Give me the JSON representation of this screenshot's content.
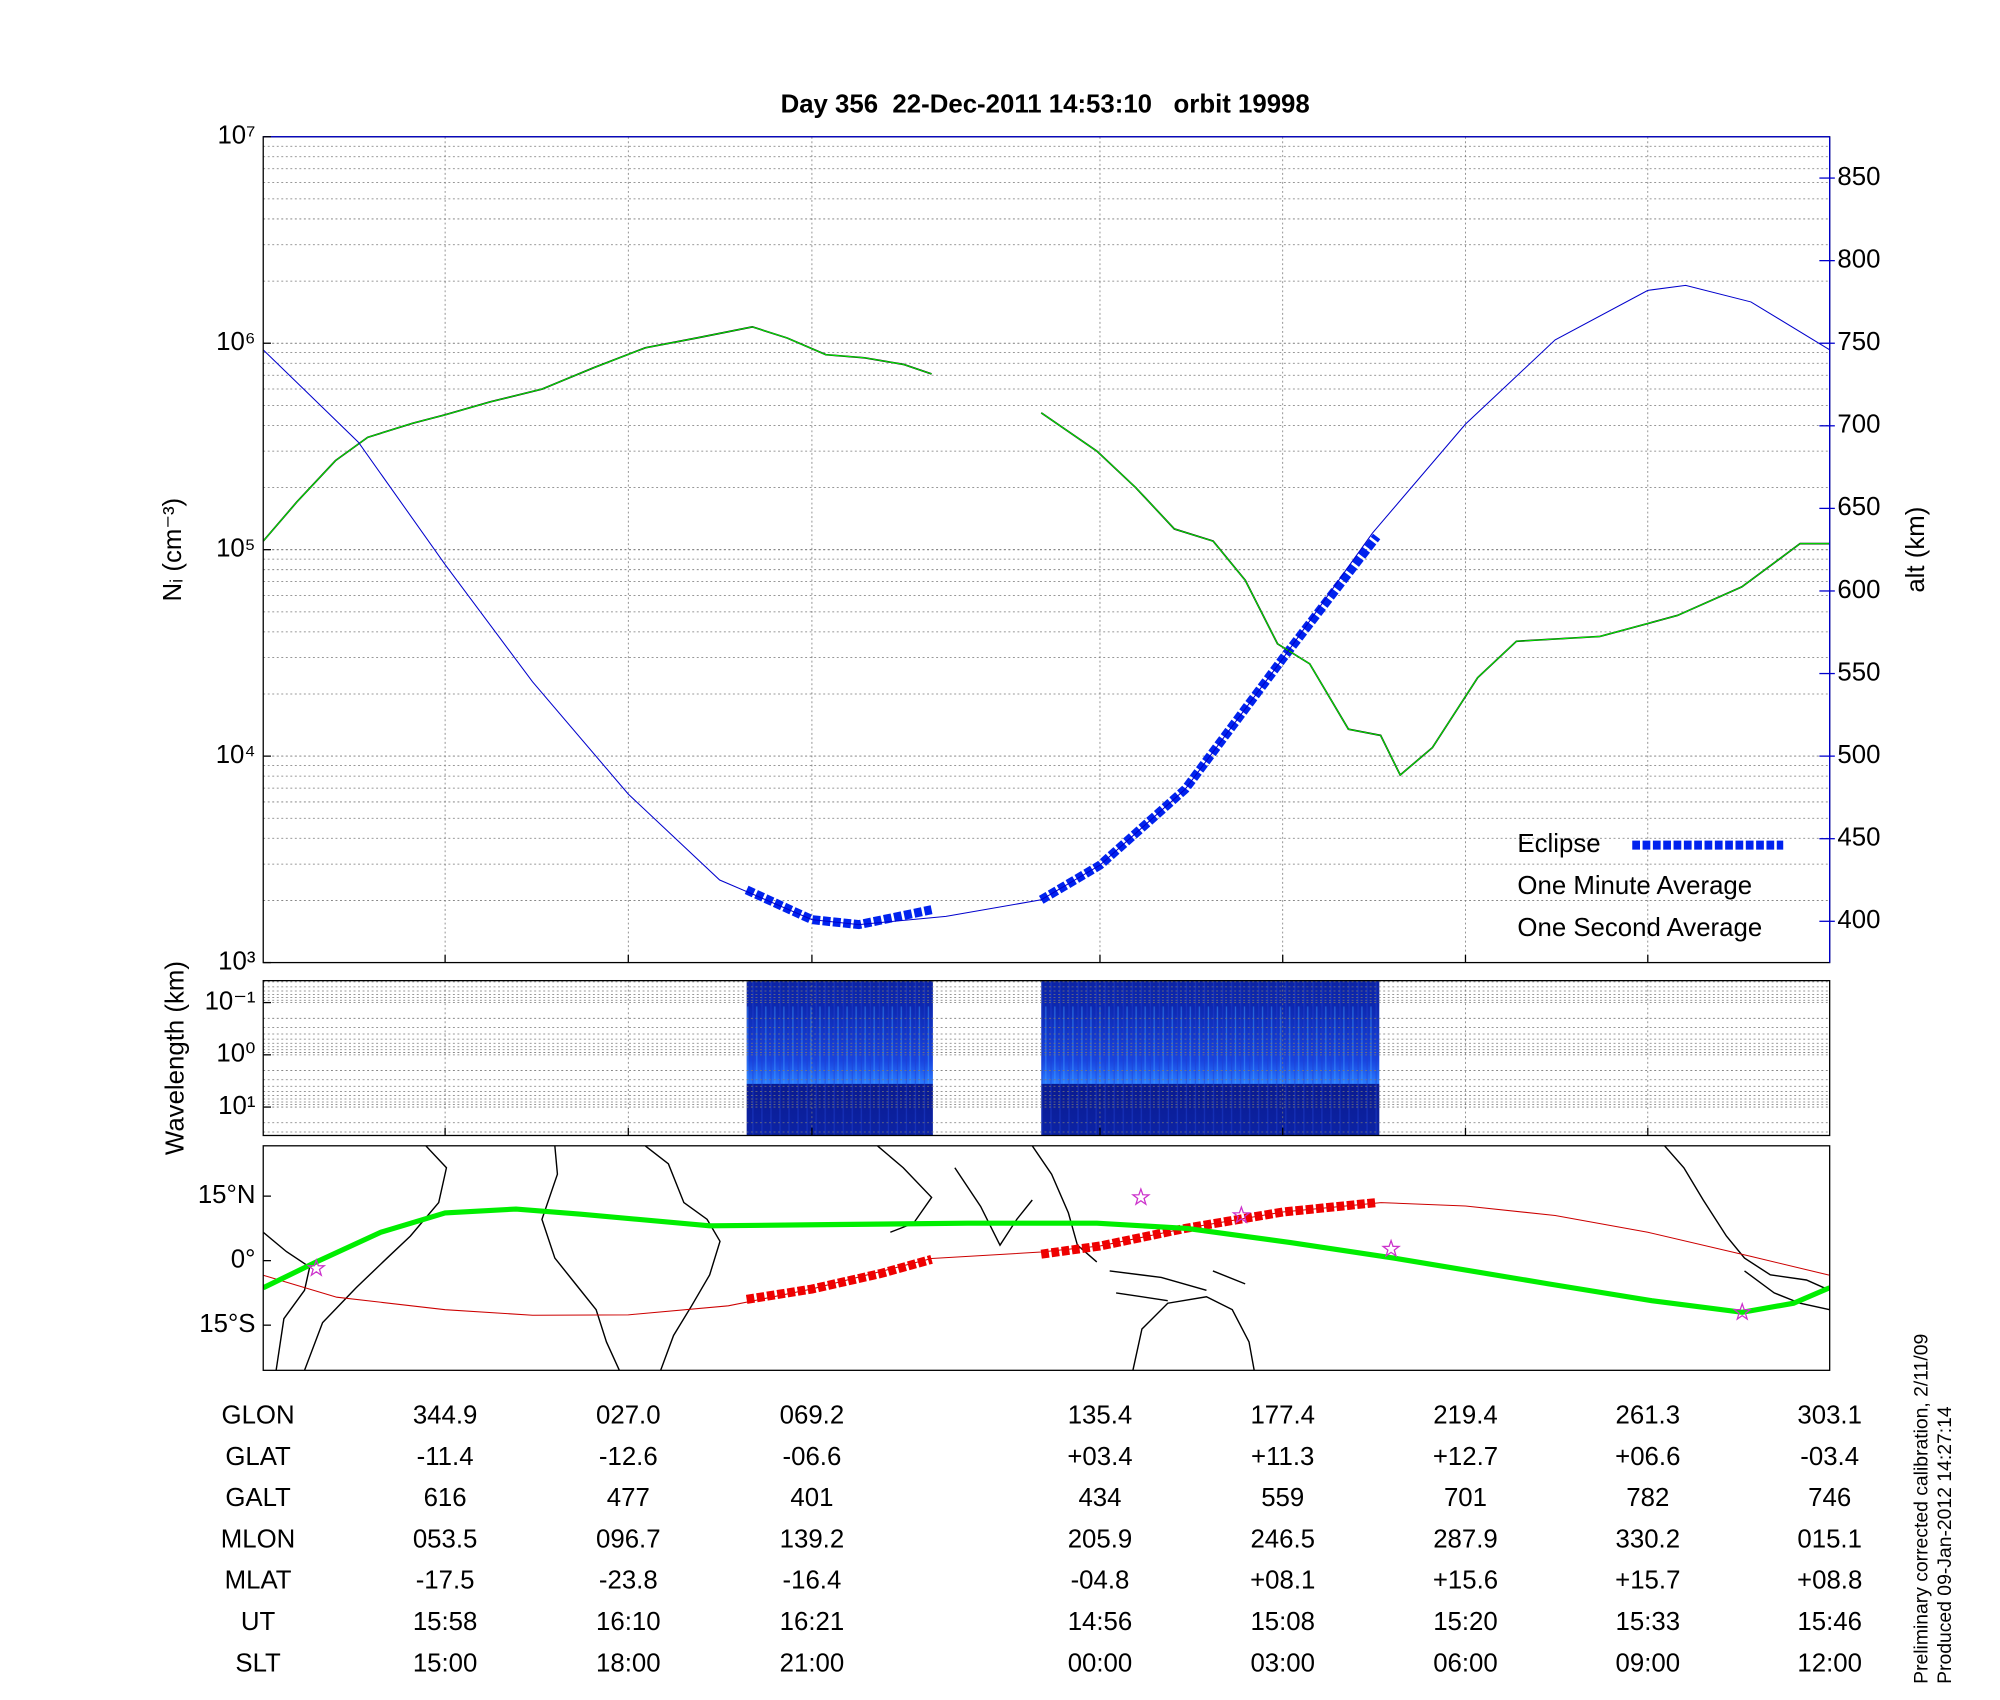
{
  "chart_data": [
    {
      "type": "line",
      "title": "Day 356  22-Dec-2011 14:53:10   orbit 19998",
      "ylabel": "Nᵢ (cm⁻³)",
      "y2label": "alt (km)",
      "log_y": true,
      "ylim": [
        1000,
        10000000
      ],
      "yticks": [
        {
          "value": 1000,
          "label": "10³"
        },
        {
          "value": 10000,
          "label": "10⁴"
        },
        {
          "value": 100000,
          "label": "10⁵"
        },
        {
          "value": 1000000,
          "label": "10⁶"
        },
        {
          "value": 10000000,
          "label": "10⁷"
        }
      ],
      "y2lim": [
        375,
        875
      ],
      "y2ticks": [
        400,
        450,
        500,
        550,
        600,
        650,
        700,
        750,
        800,
        850
      ],
      "y2color": "#0000cc",
      "xlim": [
        303.1,
        663.1
      ],
      "xticks": [
        344.9,
        387.0,
        429.2,
        495.4,
        537.4,
        579.4,
        621.3
      ],
      "grid": true,
      "legend": "lower right",
      "series": [
        {
          "name": "Eclipse",
          "color": "#0022ee",
          "axis": "y2",
          "style": "dashed",
          "x": [
            414.2,
            429.2,
            440,
            456.7,
            469.3,
            481.9,
            495.4,
            515,
            537.4,
            559.0
          ],
          "values": [
            419,
            401,
            398,
            407,
            null,
            413,
            434,
            480,
            559,
            633
          ]
        },
        {
          "name": "One Minute Average",
          "color": "#000000",
          "style": "line",
          "x": [
            303.1,
            310.8,
            319.7,
            327.1,
            337.5,
            344.9,
            355.3,
            367.2,
            379.0,
            390.9,
            402.7,
            415.5,
            423.5,
            432.4,
            441.3,
            450.2,
            456.7,
            469.3,
            481.9,
            494.7,
            503.6,
            512.5,
            521.4,
            528.8,
            536.2,
            543.6,
            552.5,
            559.9,
            564.4,
            571.8,
            582.2,
            591.1,
            610.3,
            628.1,
            642.9,
            656.3,
            663.1
          ],
          "values": [
            110000,
            170000,
            270000,
            350000,
            410000,
            450000,
            520000,
            600000,
            760000,
            950000,
            1060000,
            1200000,
            1060000,
            880000,
            850000,
            790000,
            710000,
            null,
            460000,
            300000,
            200000,
            126000,
            110000,
            71000,
            35000,
            28000,
            13500,
            12600,
            8100,
            11000,
            24000,
            36000,
            38000,
            48000,
            66000,
            107000,
            107000
          ]
        },
        {
          "name": "One Second Average",
          "color": "#00ee00",
          "style": "thin",
          "x": [
            303.1,
            310.8,
            319.7,
            327.1,
            337.5,
            344.9,
            355.3,
            367.2,
            379.0,
            390.9,
            402.7,
            415.5,
            423.5,
            432.4,
            441.3,
            450.2,
            456.7,
            469.3,
            481.9,
            494.7,
            503.6,
            512.5,
            521.4,
            528.8,
            536.2,
            543.6,
            552.5,
            559.9,
            564.4,
            571.8,
            582.2,
            591.1,
            610.3,
            628.1,
            642.9,
            656.3,
            663.1
          ],
          "values": [
            110000,
            170000,
            270000,
            350000,
            410000,
            450000,
            520000,
            600000,
            760000,
            950000,
            1060000,
            1200000,
            1060000,
            880000,
            850000,
            790000,
            710000,
            null,
            460000,
            300000,
            200000,
            126000,
            110000,
            71000,
            35000,
            28000,
            13500,
            12600,
            8100,
            11000,
            24000,
            36000,
            38000,
            48000,
            66000,
            107000,
            107000
          ]
        },
        {
          "color": "#0000cc",
          "axis": "y2",
          "style": "thin",
          "x": [
            303.1,
            325,
            344.9,
            365,
            387,
            408,
            429.2,
            440,
            460,
            481.9,
            495.4,
            515,
            537.4,
            558,
            579.4,
            600,
            621.3,
            630,
            645,
            663.1
          ],
          "values": [
            746,
            690,
            616,
            545,
            477,
            425,
            401,
            398,
            403,
            413,
            434,
            480,
            559,
            635,
            701,
            752,
            782,
            785,
            775,
            746
          ]
        }
      ]
    },
    {
      "type": "spectrogram",
      "ylabel": "Wavelength (km)",
      "log_y": true,
      "ylim": [
        35,
        0.038
      ],
      "yticks": [
        {
          "value": 0.1,
          "label": "10⁻¹"
        },
        {
          "value": 1,
          "label": "10⁰"
        },
        {
          "value": 10,
          "label": "10¹"
        }
      ],
      "xlim": [
        303.1,
        663.1
      ],
      "xticks": [
        344.9,
        387.0,
        429.2,
        495.4,
        537.4,
        579.4,
        621.3
      ],
      "grid": true,
      "segments": [
        [
          414.2,
          457.0
        ],
        [
          481.9,
          559.6
        ]
      ]
    },
    {
      "type": "map",
      "ylim": [
        -25.5,
        26.7
      ],
      "xlim": [
        303.1,
        663.1
      ],
      "yticks": [
        {
          "value": 15,
          "label": "15°N"
        },
        {
          "value": 0,
          "label": "0°"
        },
        {
          "value": -15,
          "label": "15°S"
        }
      ],
      "series": [
        {
          "color": "#cc0000",
          "style": "thin",
          "x": [
            303.1,
            320,
            344.9,
            365,
            387,
            410,
            429.2,
            456.7,
            481.9,
            495.4,
            515,
            537.4,
            560,
            579.4,
            600,
            621.3,
            645,
            663.1
          ],
          "values": [
            -3.4,
            -8.5,
            -11.4,
            -12.7,
            -12.6,
            -10.5,
            -6.6,
            0.5,
            2,
            3.4,
            7.5,
            11.3,
            13.5,
            12.7,
            10.5,
            6.6,
            1,
            -3.4
          ]
        },
        {
          "color": "#ee0000",
          "style": "dashed",
          "x": [
            414.2,
            429.2,
            445,
            456.7,
            469.3,
            481.9,
            495.4,
            515,
            537.4,
            559.0
          ],
          "values": [
            -9,
            -6.6,
            -3,
            0.3,
            null,
            1.5,
            3.4,
            7.5,
            11.3,
            13.5
          ]
        },
        {
          "color": "#00ee00",
          "style": "bold",
          "x": [
            303.1,
            315.3,
            330.1,
            344.9,
            361.2,
            376.1,
            405.7,
            435.4,
            465.0,
            494.7,
            515.4,
            539.2,
            562.9,
            598.5,
            622.2,
            643.0,
            654.8,
            663.1
          ],
          "values": [
            -6.3,
            -0.3,
            6.6,
            11.1,
            12,
            10.8,
            8.1,
            8.4,
            8.7,
            8.7,
            7.5,
            4.2,
            0.6,
            -5.4,
            -9.3,
            -12,
            -9.9,
            -6.3
          ]
        },
        {
          "color": "#cc33cc",
          "style": "stars",
          "x": [
            315.3,
            504.8,
            527.9,
            562.3,
            643.0
          ],
          "values": [
            -1.8,
            14.7,
            10.5,
            2.7,
            -12
          ]
        }
      ]
    }
  ],
  "table": {
    "rows": [
      [
        "GLON",
        "344.9",
        "027.0",
        "069.2",
        "135.4",
        "177.4",
        "219.4",
        "261.3",
        "303.1"
      ],
      [
        "GLAT",
        "-11.4",
        "-12.6",
        "-06.6",
        "+03.4",
        "+11.3",
        "+12.7",
        "+06.6",
        "-03.4"
      ],
      [
        "GALT",
        "616",
        "477",
        "401",
        "434",
        "559",
        "701",
        "782",
        "746"
      ],
      [
        "MLON",
        "053.5",
        "096.7",
        "139.2",
        "205.9",
        "246.5",
        "287.9",
        "330.2",
        "015.1"
      ],
      [
        "MLAT",
        "-17.5",
        "-23.8",
        "-16.4",
        "-04.8",
        "+08.1",
        "+15.6",
        "+15.7",
        "+08.8"
      ],
      [
        "UT",
        "15:58",
        "16:10",
        "16:21",
        "14:56",
        "15:08",
        "15:20",
        "15:33",
        "15:46"
      ],
      [
        "SLT",
        "15:00",
        "18:00",
        "21:00",
        "00:00",
        "03:00",
        "06:00",
        "09:00",
        "12:00"
      ]
    ]
  },
  "notes": [
    "Preliminary corrected calibration, 2/11/09",
    "Produced 09-Jan-2012 14:27:14"
  ]
}
